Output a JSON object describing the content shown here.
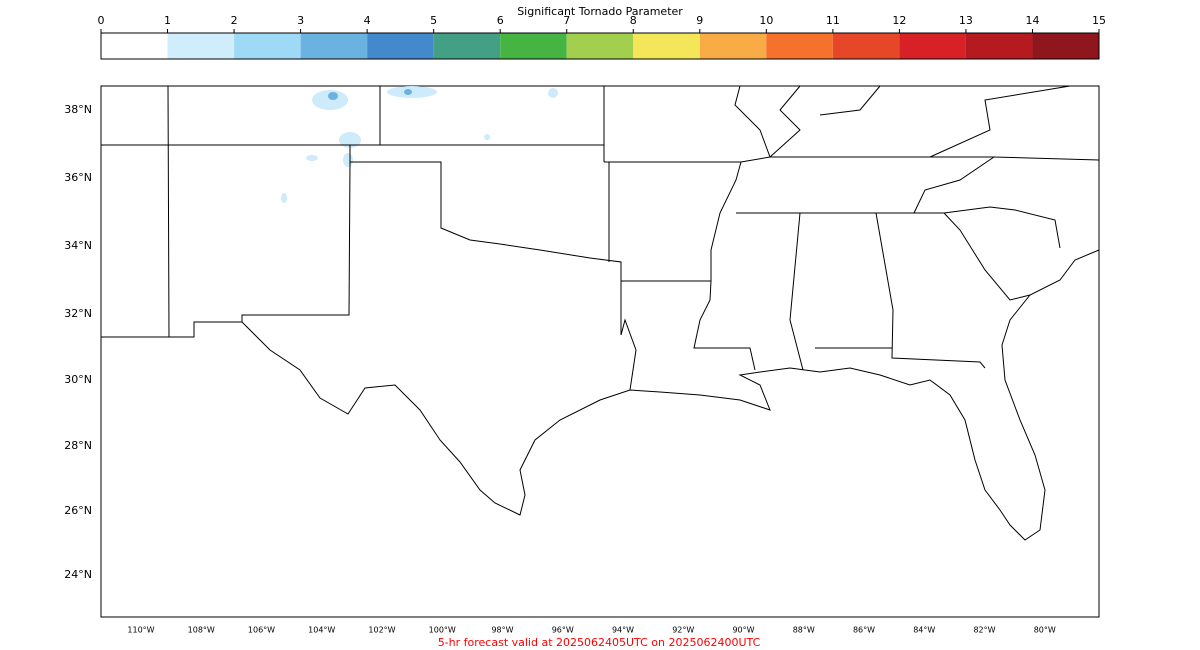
{
  "colorbar": {
    "title": "Significant Tornado Parameter",
    "ticks": [
      0,
      1,
      2,
      3,
      4,
      5,
      6,
      7,
      8,
      9,
      10,
      11,
      12,
      13,
      14,
      15
    ],
    "colors": [
      "#ffffff",
      "#cfedfb",
      "#9ed9f5",
      "#6cb2e0",
      "#4489cc",
      "#43a085",
      "#46b443",
      "#a2cf4e",
      "#f3e659",
      "#f9ab45",
      "#f6712c",
      "#e64728",
      "#d72127",
      "#b51a21",
      "#8f161c"
    ]
  },
  "map": {
    "lat_labels": [
      "38°N",
      "36°N",
      "34°N",
      "32°N",
      "30°N",
      "28°N",
      "26°N",
      "24°N"
    ],
    "lon_labels": [
      "110°W",
      "108°W",
      "106°W",
      "104°W",
      "102°W",
      "100°W",
      "98°W",
      "96°W",
      "94°W",
      "92°W",
      "90°W",
      "88°W",
      "86°W",
      "84°W",
      "82°W",
      "80°W"
    ]
  },
  "footer": "5-hr forecast valid at 2025062405UTC on 2025062400UTC"
}
